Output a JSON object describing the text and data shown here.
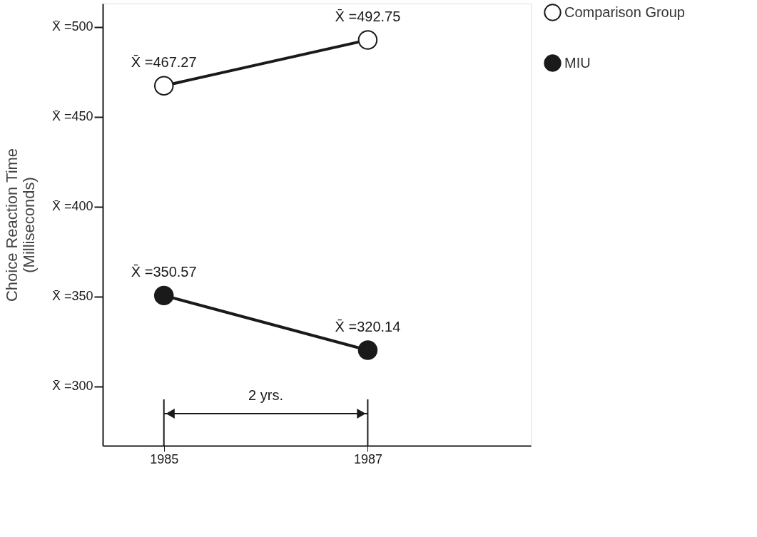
{
  "chart_data": {
    "type": "line",
    "ylabel": "Choice Reaction Time\n(Milliseconds)",
    "x": [
      1985,
      1987
    ],
    "xlim": [
      1984.4,
      1988.6
    ],
    "xticks": [
      1985,
      1987
    ],
    "ylim": [
      267,
      513
    ],
    "yticks": [
      {
        "value": 300,
        "label": "X̄ =300"
      },
      {
        "value": 350,
        "label": "X̄ =350"
      },
      {
        "value": 400,
        "label": "X̄ =400"
      },
      {
        "value": 450,
        "label": "X̄ =450"
      },
      {
        "value": 500,
        "label": "X̄ =500"
      }
    ],
    "series": [
      {
        "name": "Comparison Group",
        "color": "#ffffff",
        "values": [
          467.27,
          492.75
        ],
        "value_labels": [
          "X̄ =467.27",
          "X̄ =492.75"
        ]
      },
      {
        "name": "MIU",
        "color": "#1a1a1a",
        "values": [
          350.57,
          320.14
        ],
        "value_labels": [
          "X̄ =350.57",
          "X̄ =320.14"
        ]
      }
    ],
    "annotations": [
      "2 yrs."
    ],
    "marker": "circle",
    "line_style": "solid",
    "grid": false,
    "legend": "right"
  }
}
